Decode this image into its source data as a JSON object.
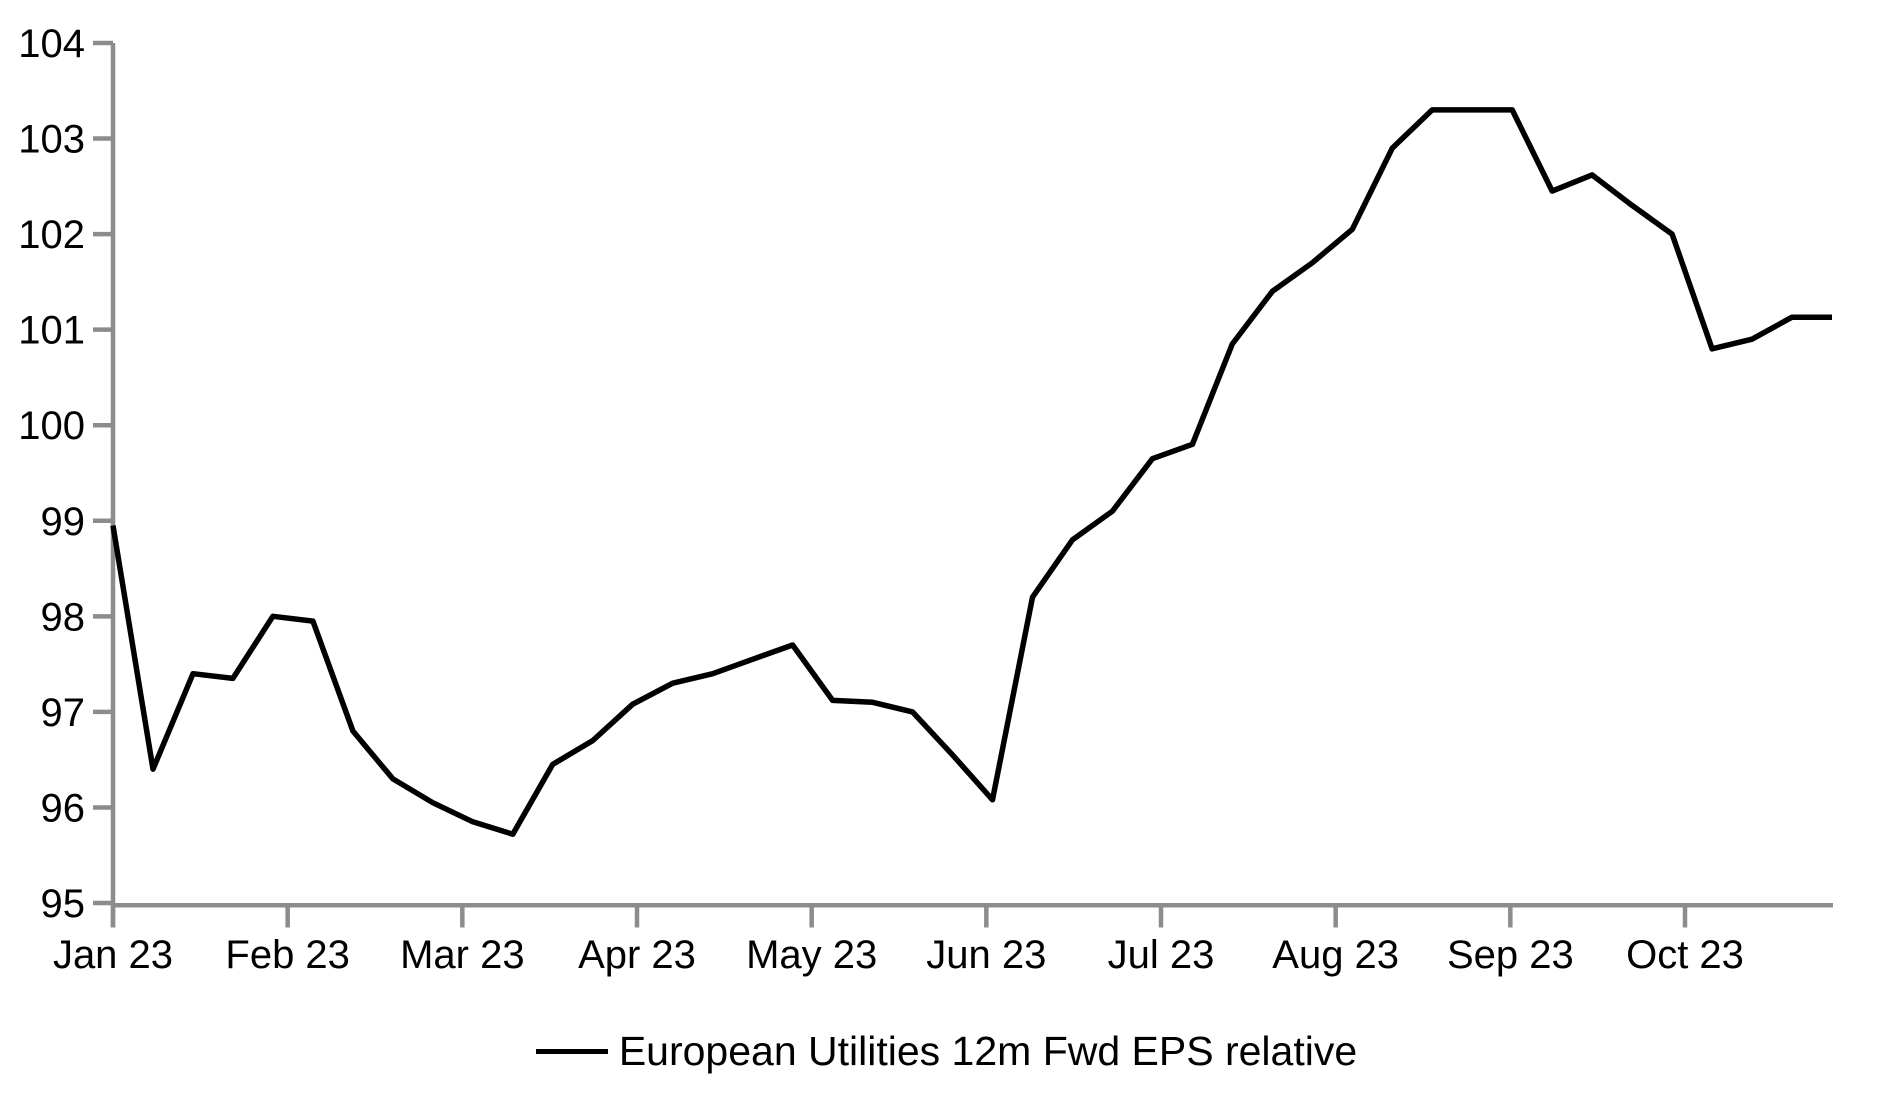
{
  "chart_data": {
    "type": "line",
    "title": "",
    "background": "#FFFFFF",
    "axis_color": "#8C8C8C",
    "text_color": "#000000",
    "grid": "off",
    "legend": {
      "position": "bottom-center",
      "label": "European Utilities 12m Fwd EPS relative"
    },
    "y_axis": {
      "min": 95,
      "max": 104,
      "tick_step": 1,
      "tick_labels": [
        "95",
        "96",
        "97",
        "98",
        "99",
        "100",
        "101",
        "102",
        "103",
        "104"
      ]
    },
    "x_axis": {
      "tick_labels": [
        "Jan 23",
        "Feb 23",
        "Mar 23",
        "Apr 23",
        "May 23",
        "Jun 23",
        "Jul 23",
        "Aug 23",
        "Sep 23",
        "Oct 23"
      ],
      "frequency": "weekly points, monthly ticks"
    },
    "series": [
      {
        "name": "European Utilities 12m Fwd EPS relative",
        "color": "#000000",
        "values": [
          98.95,
          96.4,
          97.4,
          97.35,
          98.0,
          97.95,
          96.8,
          96.3,
          96.05,
          95.85,
          95.72,
          96.45,
          96.7,
          97.08,
          97.3,
          97.4,
          97.55,
          97.7,
          97.12,
          97.1,
          97.0,
          96.55,
          96.08,
          98.2,
          98.8,
          99.1,
          99.65,
          99.8,
          100.85,
          101.4,
          101.7,
          102.05,
          102.9,
          103.3,
          103.3,
          103.3,
          102.45,
          102.62,
          102.3,
          102.0,
          100.8,
          100.9,
          101.13,
          101.13
        ]
      }
    ]
  }
}
